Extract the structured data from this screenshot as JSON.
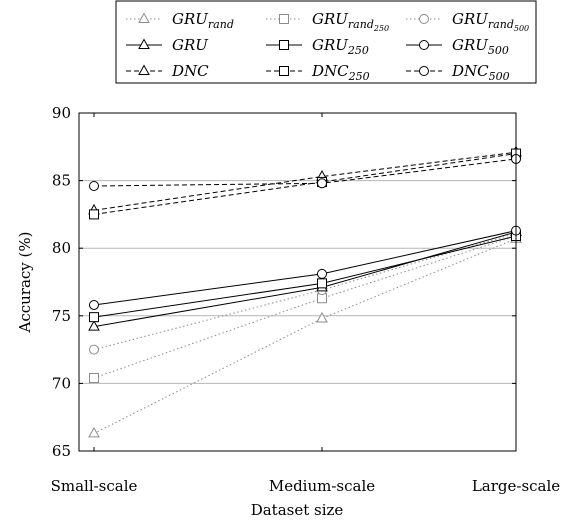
{
  "chart_data": {
    "type": "line",
    "xlabel": "Dataset size",
    "ylabel": "Accuracy (%)",
    "categories": [
      "Small-scale",
      "Medium-scale",
      "Large-scale"
    ],
    "ylim": [
      65,
      90
    ],
    "yticks": [
      65,
      70,
      75,
      80,
      85,
      90
    ],
    "grid": "horizontal",
    "legend_placement": "top",
    "series": [
      {
        "name": "GRU_rand",
        "base": "GRU",
        "sub": "rand",
        "subsub": "",
        "marker": "triangle",
        "line": "dotted",
        "color": "#8c8c8c",
        "values": [
          66.3,
          74.8,
          80.7
        ]
      },
      {
        "name": "GRU_rand250",
        "base": "GRU",
        "sub": "rand",
        "subsub": "250",
        "marker": "square",
        "line": "dotted",
        "color": "#8c8c8c",
        "values": [
          70.4,
          76.3,
          80.9
        ]
      },
      {
        "name": "GRU_rand500",
        "base": "GRU",
        "sub": "rand",
        "subsub": "500",
        "marker": "circle",
        "line": "dotted",
        "color": "#8c8c8c",
        "values": [
          72.5,
          76.9,
          81.1
        ]
      },
      {
        "name": "GRU",
        "base": "GRU",
        "sub": "",
        "subsub": "",
        "marker": "triangle",
        "line": "solid",
        "color": "#000000",
        "values": [
          74.2,
          77.1,
          81.2
        ]
      },
      {
        "name": "GRU_250",
        "base": "GRU",
        "sub": "250",
        "subsub": "",
        "marker": "square",
        "line": "solid",
        "color": "#000000",
        "values": [
          74.9,
          77.4,
          80.9
        ]
      },
      {
        "name": "GRU_500",
        "base": "GRU",
        "sub": "500",
        "subsub": "",
        "marker": "circle",
        "line": "solid",
        "color": "#000000",
        "values": [
          75.8,
          78.1,
          81.3
        ]
      },
      {
        "name": "DNC",
        "base": "DNC",
        "sub": "",
        "subsub": "",
        "marker": "triangle",
        "line": "dashed",
        "color": "#000000",
        "values": [
          82.8,
          85.3,
          87.1
        ]
      },
      {
        "name": "DNC_250",
        "base": "DNC",
        "sub": "250",
        "subsub": "",
        "marker": "square",
        "line": "dashed",
        "color": "#000000",
        "values": [
          82.5,
          84.9,
          87.0
        ]
      },
      {
        "name": "DNC_500",
        "base": "DNC",
        "sub": "500",
        "subsub": "",
        "marker": "circle",
        "line": "dashed",
        "color": "#000000",
        "values": [
          84.6,
          84.8,
          86.6
        ]
      }
    ]
  }
}
